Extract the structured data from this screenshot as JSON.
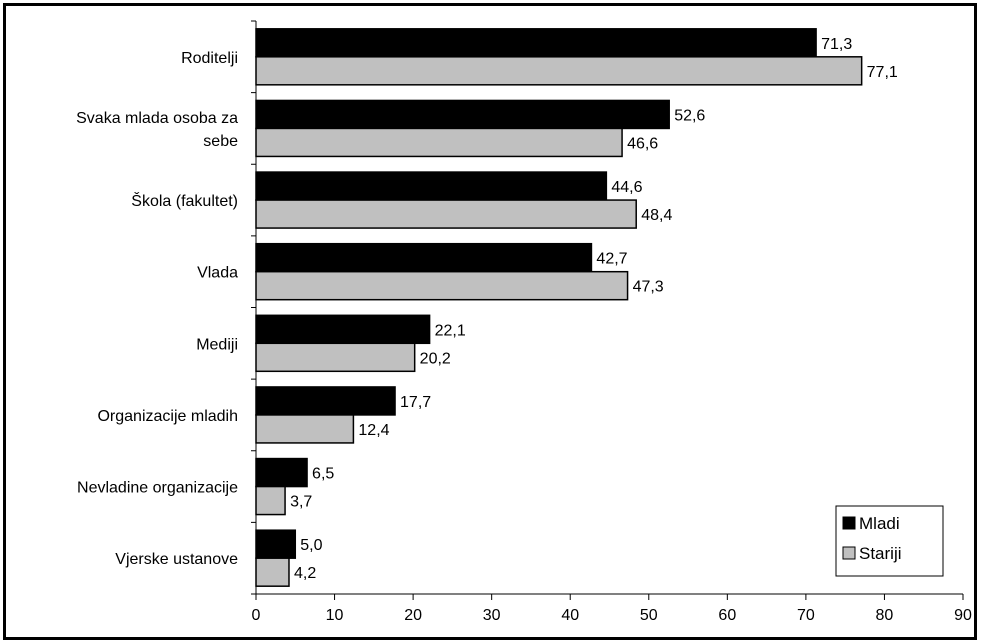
{
  "chart_data": {
    "type": "bar",
    "orientation": "horizontal",
    "categories": [
      [
        "Roditelji"
      ],
      [
        "Svaka mlada osoba za",
        "sebe"
      ],
      [
        "Škola (fakultet)"
      ],
      [
        "Vlada"
      ],
      [
        "Mediji"
      ],
      [
        "Organizacije mladih"
      ],
      [
        "Nevladine organizacije"
      ],
      [
        "Vjerske ustanove"
      ]
    ],
    "series": [
      {
        "name": "Mladi",
        "color": "#000000",
        "values": [
          71.3,
          52.6,
          44.6,
          42.7,
          22.1,
          17.7,
          6.5,
          5.0
        ],
        "labels": [
          "71,3",
          "52,6",
          "44,6",
          "42,7",
          "22,1",
          "17,7",
          "6,5",
          "5,0"
        ]
      },
      {
        "name": "Stariji",
        "color": "#c0c0c0",
        "values": [
          77.1,
          46.6,
          48.4,
          47.3,
          20.2,
          12.4,
          3.7,
          4.2
        ],
        "labels": [
          "77,1",
          "46,6",
          "48,4",
          "47,3",
          "20,2",
          "12,4",
          "3,7",
          "4,2"
        ]
      }
    ],
    "xlim": [
      0,
      90
    ],
    "xticks": [
      0,
      10,
      20,
      30,
      40,
      50,
      60,
      70,
      80,
      90
    ],
    "grid": false,
    "legend_position": "bottom-right"
  }
}
